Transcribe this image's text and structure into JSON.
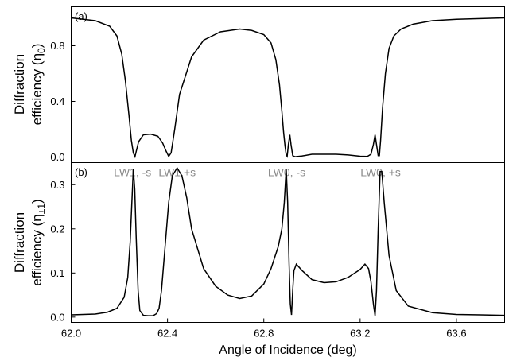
{
  "chart_data": [
    {
      "type": "line",
      "panel_label": "(a)",
      "ylabel_main": "Diffraction",
      "ylabel_sub": "efficiency (η",
      "ylabel_subscript": "0",
      "ylabel_close": ")",
      "xlim": [
        62.0,
        63.8
      ],
      "ylim": [
        -0.04,
        1.08
      ],
      "yticks": [
        0.0,
        0.4,
        0.8
      ],
      "ytick_labels": [
        "0.0",
        "0.4",
        "0.8"
      ],
      "series": [
        {
          "x": [
            62.0,
            62.1,
            62.16,
            62.19,
            62.21,
            62.225,
            62.24,
            62.25,
            62.258,
            62.265,
            62.27,
            62.28,
            62.3,
            62.33,
            62.36,
            62.38,
            62.395,
            62.405,
            62.415,
            62.43,
            62.45,
            62.5,
            62.55,
            62.62,
            62.7,
            62.75,
            62.8,
            62.83,
            62.85,
            62.865,
            62.875,
            62.882,
            62.888,
            62.893,
            62.897,
            62.902,
            62.908,
            62.913,
            62.92,
            62.93,
            62.96,
            63.0,
            63.05,
            63.1,
            63.15,
            63.2,
            63.23,
            63.245,
            63.255,
            63.262,
            63.268,
            63.275,
            63.28,
            63.285,
            63.293,
            63.305,
            63.32,
            63.34,
            63.37,
            63.42,
            63.5,
            63.6,
            63.7,
            63.8
          ],
          "y": [
            1.0,
            0.98,
            0.94,
            0.87,
            0.74,
            0.55,
            0.3,
            0.12,
            0.03,
            0.003,
            0.04,
            0.11,
            0.16,
            0.165,
            0.15,
            0.1,
            0.04,
            0.005,
            0.03,
            0.2,
            0.45,
            0.72,
            0.84,
            0.9,
            0.92,
            0.91,
            0.88,
            0.82,
            0.7,
            0.52,
            0.33,
            0.18,
            0.08,
            0.015,
            0.005,
            0.09,
            0.16,
            0.09,
            0.01,
            0.002,
            0.008,
            0.02,
            0.02,
            0.02,
            0.015,
            0.006,
            0.004,
            0.02,
            0.09,
            0.16,
            0.09,
            0.01,
            0.01,
            0.12,
            0.35,
            0.6,
            0.78,
            0.87,
            0.92,
            0.955,
            0.98,
            0.99,
            0.995,
            1.0
          ]
        }
      ]
    },
    {
      "type": "line",
      "panel_label": "(b)",
      "ylabel_main": "Diffraction",
      "ylabel_sub": "efficiency (η",
      "ylabel_subscript": "±1",
      "ylabel_close": ")",
      "xlabel": "Angle of Incidence (deg)",
      "xlim": [
        62.0,
        63.8
      ],
      "ylim": [
        -0.012,
        0.35
      ],
      "yticks": [
        0.0,
        0.1,
        0.2,
        0.3
      ],
      "ytick_labels": [
        "0.0",
        "0.1",
        "0.2",
        "0.3"
      ],
      "xticks": [
        62.0,
        62.4,
        62.8,
        63.2,
        63.6
      ],
      "xtick_labels": [
        "62.0",
        "62.4",
        "62.8",
        "63.2",
        "63.6"
      ],
      "annotations": [
        {
          "text": "LW1, -s",
          "x": 62.255
        },
        {
          "text": "LW1,+s",
          "x": 62.44
        },
        {
          "text": "LW0, -s",
          "x": 62.895
        },
        {
          "text": "LW0, +s",
          "x": 63.285
        }
      ],
      "series": [
        {
          "x": [
            62.0,
            62.1,
            62.15,
            62.19,
            62.22,
            62.235,
            62.245,
            62.252,
            62.258,
            62.264,
            62.27,
            62.278,
            62.285,
            62.3,
            62.32,
            62.34,
            62.355,
            62.365,
            62.375,
            62.39,
            62.405,
            62.42,
            62.44,
            62.46,
            62.48,
            62.5,
            62.55,
            62.6,
            62.65,
            62.7,
            62.75,
            62.8,
            62.83,
            62.86,
            62.875,
            62.885,
            62.893,
            62.899,
            62.905,
            62.91,
            62.915,
            62.92,
            62.925,
            62.935,
            62.96,
            63.0,
            63.05,
            63.1,
            63.15,
            63.2,
            63.22,
            63.235,
            63.245,
            63.255,
            63.262,
            63.268,
            63.275,
            63.283,
            63.29,
            63.3,
            63.32,
            63.35,
            63.4,
            63.5,
            63.6,
            63.7,
            63.8
          ],
          "y": [
            0.005,
            0.007,
            0.011,
            0.02,
            0.045,
            0.09,
            0.17,
            0.26,
            0.335,
            0.29,
            0.18,
            0.06,
            0.015,
            0.004,
            0.003,
            0.003,
            0.008,
            0.02,
            0.06,
            0.16,
            0.26,
            0.32,
            0.338,
            0.32,
            0.27,
            0.2,
            0.11,
            0.07,
            0.05,
            0.042,
            0.048,
            0.075,
            0.11,
            0.16,
            0.2,
            0.26,
            0.336,
            0.26,
            0.12,
            0.03,
            0.005,
            0.06,
            0.105,
            0.12,
            0.105,
            0.085,
            0.078,
            0.08,
            0.09,
            0.108,
            0.12,
            0.11,
            0.08,
            0.03,
            0.003,
            0.06,
            0.2,
            0.33,
            0.33,
            0.26,
            0.14,
            0.06,
            0.025,
            0.01,
            0.006,
            0.005,
            0.004
          ]
        }
      ]
    }
  ]
}
